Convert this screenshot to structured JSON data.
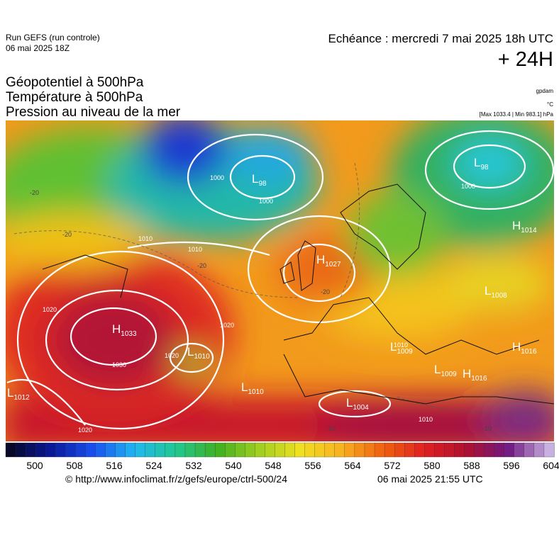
{
  "header": {
    "run": "Run GEFS (run controle)",
    "run_date": "06 mai 2025 18Z",
    "echeance": "Echéance : mercredi 7 mai 2025 18h UTC",
    "lead": "+ 24H"
  },
  "fields": [
    "Géopotentiel à 500hPa",
    "Température à 500hPa",
    "Pression au niveau de la mer"
  ],
  "units": [
    "gpdam",
    "°C",
    "[Max 1033.4 | Min 983.1] hPa"
  ],
  "centers": [
    {
      "letter": "H",
      "value": "1033"
    },
    {
      "letter": "L",
      "value": "1010"
    },
    {
      "letter": "L",
      "value": "1010"
    },
    {
      "letter": "L",
      "value": "1004"
    },
    {
      "letter": "H",
      "value": "1027"
    },
    {
      "letter": "L",
      "value": "98"
    },
    {
      "letter": "L",
      "value": "98"
    },
    {
      "letter": "H",
      "value": "1014"
    },
    {
      "letter": "L",
      "value": "1008"
    },
    {
      "letter": "H",
      "value": "1016"
    },
    {
      "letter": "L",
      "value": "1009"
    },
    {
      "letter": "L",
      "value": "1009"
    },
    {
      "letter": "H",
      "value": "1016"
    },
    {
      "letter": "L",
      "value": "1012"
    }
  ],
  "isobar_labels": [
    "1000",
    "1000",
    "1000",
    "1010",
    "1010",
    "1010",
    "1020",
    "1020",
    "1020",
    "1020",
    "1030",
    "1010"
  ],
  "temperature_labels": [
    "-20",
    "-20",
    "-20",
    "-20",
    "-10",
    "-10"
  ],
  "colorbar": [
    500,
    508,
    516,
    524,
    532,
    540,
    548,
    556,
    564,
    572,
    580,
    588,
    596,
    604
  ],
  "footer": {
    "url": "© http://www.infoclimat.fr/z/gefs/europe/ctrl-500/24",
    "time": "06 mai 2025 21:55 UTC"
  }
}
